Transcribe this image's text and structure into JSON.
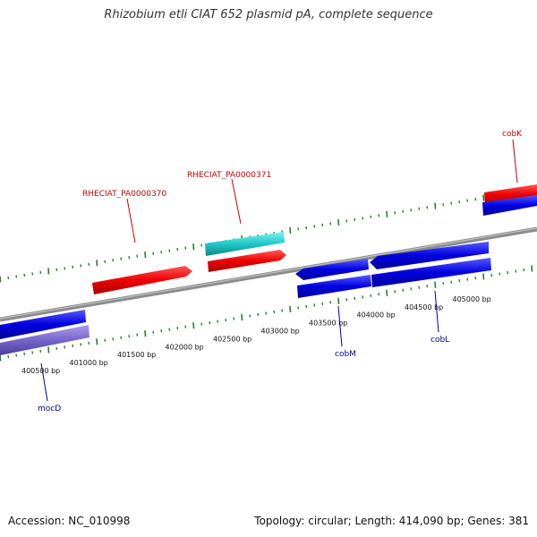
{
  "title": "Rhizobium etli CIAT 652 plasmid pA, complete sequence",
  "footer": {
    "accession": "Accession: NC_010998",
    "stats": "Topology: circular; Length: 414,090 bp; Genes: 381"
  },
  "colors": {
    "forward_gene": "#ff0000",
    "reverse_gene": "#0000ee",
    "rna_gene": "#22cccc",
    "other_gene": "#7766cc",
    "backbone": "#8c8c8c",
    "ticks": "#2a7d2a",
    "label_forward": "#cc0000",
    "label_reverse": "#000099"
  },
  "scale_labels": [
    "400500 bp",
    "401000 bp",
    "401500 bp",
    "402000 bp",
    "402500 bp",
    "403000 bp",
    "403500 bp",
    "404000 bp",
    "404500 bp",
    "405000 bp"
  ],
  "genes": [
    {
      "label": "RHECIAT_PA0000370",
      "strand": "forward"
    },
    {
      "label": "RHECIAT_PA0000371",
      "strand": "forward"
    },
    {
      "label": "cobK",
      "strand": "forward"
    },
    {
      "label": "mocD",
      "strand": "reverse"
    },
    {
      "label": "cobM",
      "strand": "reverse"
    },
    {
      "label": "cobL",
      "strand": "reverse"
    }
  ]
}
